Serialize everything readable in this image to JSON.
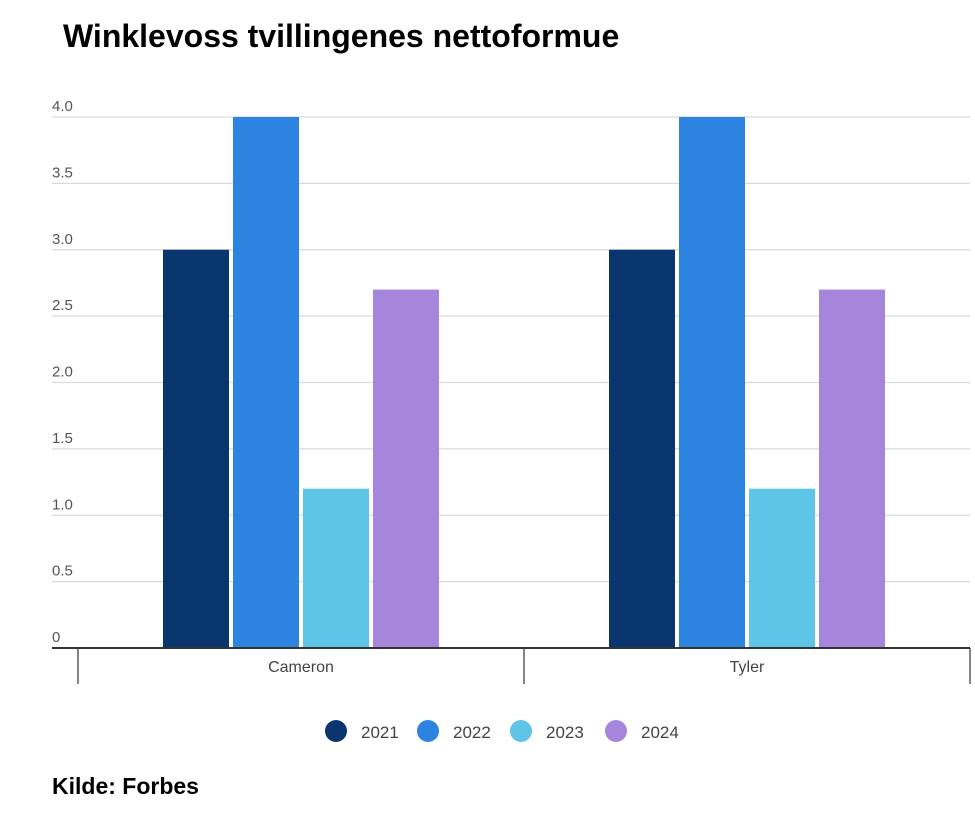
{
  "source": "Kilde: Forbes",
  "chart_data": {
    "type": "bar",
    "title": "Winklevoss tvillingenes nettoformue",
    "xlabel": "",
    "ylabel": "",
    "categories": [
      "Cameron",
      "Tyler"
    ],
    "series": [
      {
        "name": "2021",
        "color": "#0a3670",
        "values": [
          3.0,
          3.0
        ]
      },
      {
        "name": "2022",
        "color": "#2d84e0",
        "values": [
          4.0,
          4.0
        ]
      },
      {
        "name": "2023",
        "color": "#5ec5e6",
        "values": [
          1.2,
          1.2
        ]
      },
      {
        "name": "2024",
        "color": "#a686dc",
        "values": [
          2.7,
          2.7
        ]
      }
    ],
    "ylim": [
      0,
      4.0
    ],
    "yticks": [
      "0",
      "0.5",
      "1.0",
      "1.5",
      "2.0",
      "2.5",
      "3.0",
      "3.5",
      "4.0"
    ],
    "grid": true,
    "legend": "bottom"
  }
}
